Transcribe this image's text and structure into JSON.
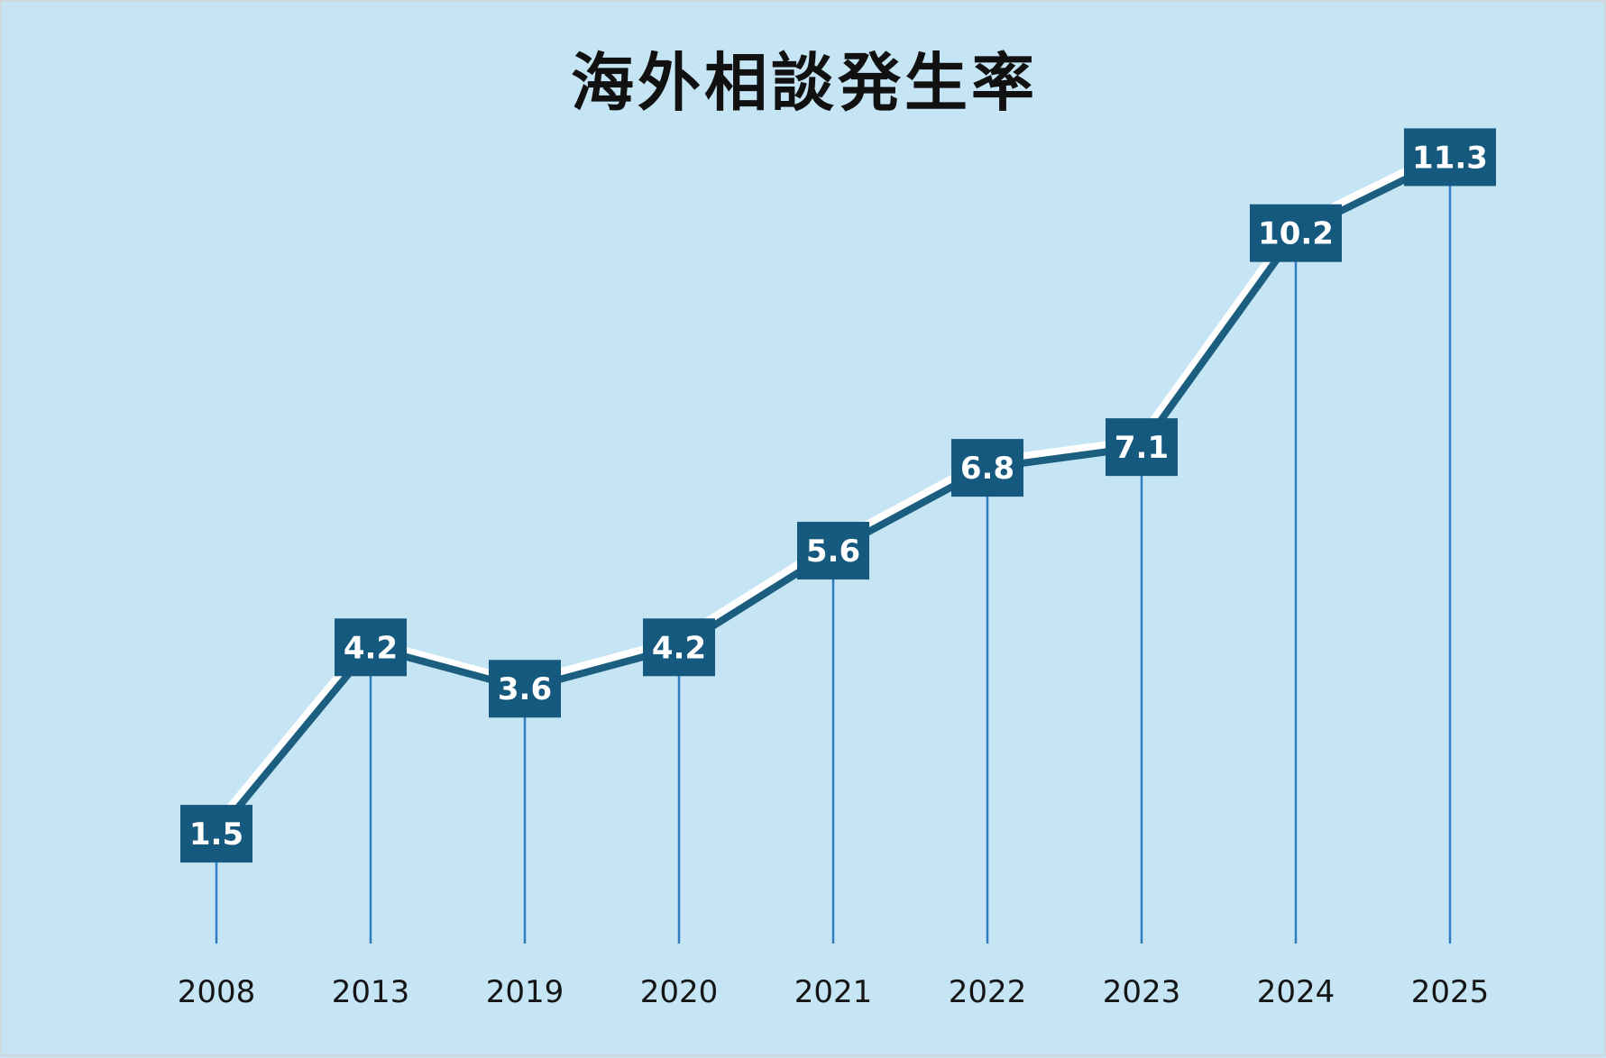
{
  "chart_data": {
    "type": "line",
    "title": "海外相談発生率",
    "categories": [
      "2008",
      "2013",
      "2019",
      "2020",
      "2021",
      "2022",
      "2023",
      "2024",
      "2025"
    ],
    "series": [
      {
        "values": [
          1.5,
          4.2,
          3.6,
          4.2,
          5.6,
          6.8,
          7.1,
          10.2,
          11.3
        ]
      }
    ],
    "value_labels": [
      "1.5",
      "4.2",
      "3.6",
      "4.2",
      "5.6",
      "6.8",
      "7.1",
      "10.2",
      "11.3"
    ],
    "xlabel": "",
    "ylabel": "",
    "ylim": [
      0,
      13
    ],
    "grid": false,
    "legend": "none",
    "drop_lines": true,
    "colors": {
      "background": "#c5e5f5",
      "line": "#1b5e80",
      "line_highlight": "#ffffff",
      "label_box": "#16597e",
      "label_text": "#ffffff",
      "drop_line": "#2f7fc0",
      "title": "#111111",
      "tick_text": "#151515"
    }
  }
}
